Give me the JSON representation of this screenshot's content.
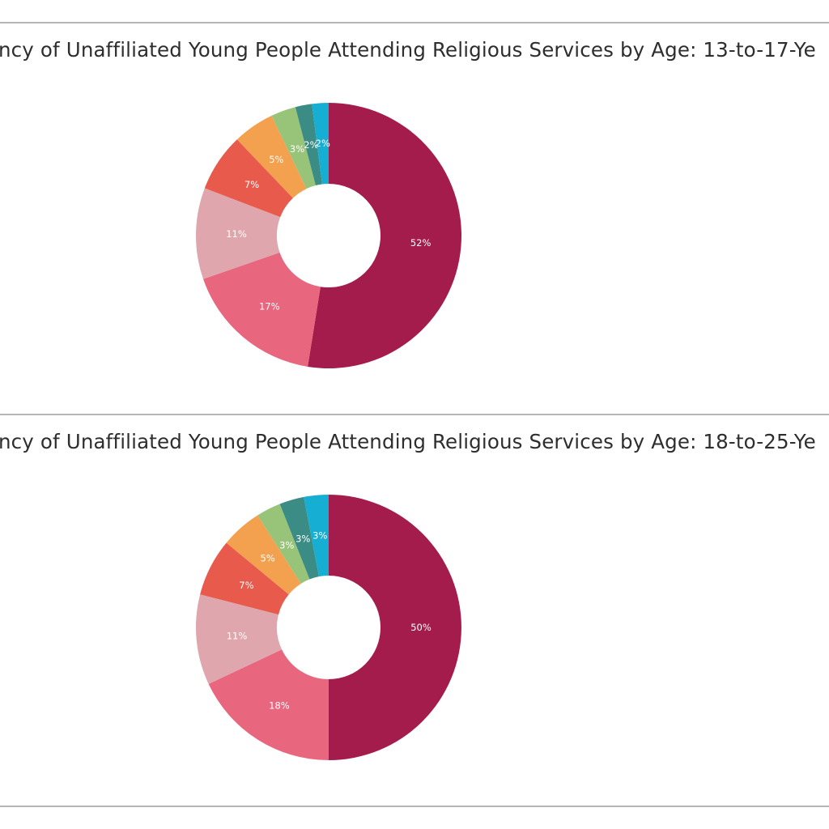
{
  "chart_data": [
    {
      "type": "pie",
      "title": "ncy of Unaffiliated Young People Attending Religious Services by Age: 13-to-17-Ye",
      "values": [
        52,
        17,
        11,
        7,
        5,
        3,
        2,
        2
      ],
      "labels": [
        "52%",
        "17%",
        "11%",
        "7%",
        "5%",
        "3%",
        "2%",
        "2%"
      ],
      "colors": [
        "#a31c4c",
        "#e8677f",
        "#dfa6ae",
        "#e85b4c",
        "#f3a14e",
        "#98c479",
        "#3b8c84",
        "#16aed3"
      ]
    },
    {
      "type": "pie",
      "title": "ncy of Unaffiliated Young People Attending Religious Services by Age: 18-to-25-Ye",
      "values": [
        50,
        18,
        11,
        7,
        5,
        3,
        3,
        3
      ],
      "labels": [
        "50%",
        "18%",
        "11%",
        "7%",
        "5%",
        "3%",
        "3%",
        "3%"
      ],
      "colors": [
        "#a31c4c",
        "#e8677f",
        "#dfa6ae",
        "#e85b4c",
        "#f3a14e",
        "#98c479",
        "#3b8c84",
        "#16aed3"
      ]
    }
  ]
}
